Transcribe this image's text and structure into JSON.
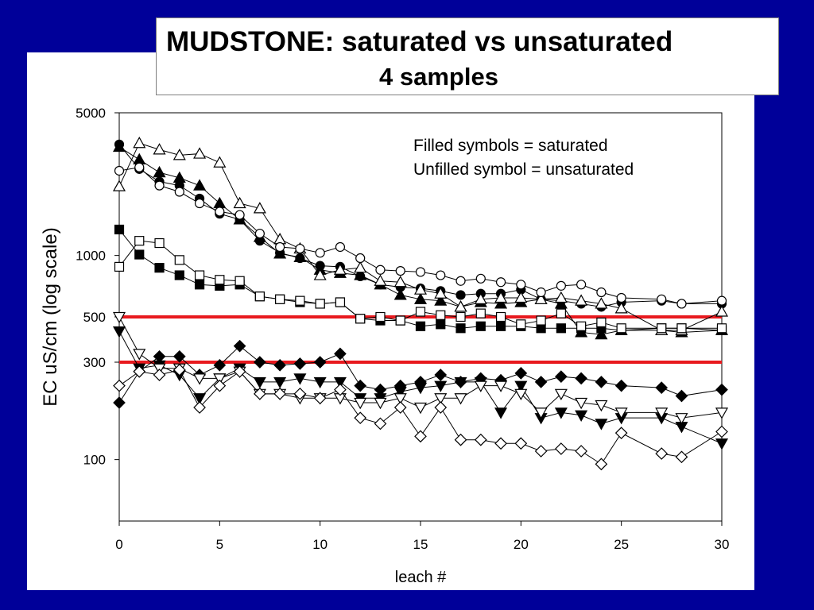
{
  "title": {
    "line1": "MUDSTONE: saturated vs unsaturated",
    "line2": "4 samples"
  },
  "colors": {
    "background": "#000099",
    "reference_line": "#e8191e"
  },
  "chart_data": {
    "type": "scatter",
    "title": "MUDSTONE: saturated vs unsaturated",
    "subtitle": "4 samples",
    "xlabel": "leach #",
    "ylabel": "EC uS/cm (log scale)",
    "xlim": [
      0,
      30
    ],
    "ylim": [
      50,
      5000
    ],
    "yscale": "log",
    "xticks": [
      0,
      5,
      10,
      15,
      20,
      25,
      30
    ],
    "yticks": [
      100,
      300,
      500,
      1000,
      5000
    ],
    "grid": false,
    "annotations": [
      "Filled symbols = saturated",
      "Unfilled symbol = unsaturated"
    ],
    "hlines": [
      500,
      300
    ],
    "series": [
      {
        "marker": "triangle-up",
        "filled": true,
        "x": [
          0,
          1,
          2,
          3,
          4,
          5,
          6,
          7,
          8,
          9,
          10,
          11,
          12,
          13,
          14,
          15,
          16,
          17,
          18,
          19,
          20,
          21,
          22,
          23,
          24,
          25,
          27,
          28,
          30
        ],
        "y": [
          3400,
          2950,
          2550,
          2400,
          2200,
          1800,
          1500,
          1230,
          1020,
          980,
          850,
          820,
          800,
          720,
          640,
          610,
          600,
          560,
          590,
          580,
          590,
          610,
          580,
          420,
          410,
          430,
          430,
          420,
          430
        ]
      },
      {
        "marker": "circle",
        "filled": true,
        "x": [
          0,
          1,
          2,
          3,
          4,
          5,
          6,
          7,
          8,
          9,
          10,
          11,
          12,
          13,
          14,
          15,
          16,
          17,
          18,
          19,
          20,
          21,
          22,
          23,
          24,
          25,
          27,
          28,
          30
        ],
        "y": [
          3500,
          2650,
          2300,
          2200,
          1900,
          1600,
          1500,
          1180,
          1030,
          970,
          890,
          880,
          790,
          720,
          700,
          690,
          670,
          640,
          650,
          650,
          680,
          610,
          600,
          580,
          560,
          590,
          600,
          580,
          580
        ]
      },
      {
        "marker": "triangle-up",
        "filled": false,
        "x": [
          0,
          1,
          2,
          3,
          4,
          5,
          6,
          7,
          8,
          9,
          10,
          11,
          12,
          13,
          14,
          15,
          16,
          17,
          18,
          19,
          20,
          21,
          22,
          23,
          24,
          25,
          27,
          28,
          30
        ],
        "y": [
          2180,
          3550,
          3300,
          3100,
          3150,
          2850,
          1800,
          1700,
          1200,
          1080,
          800,
          850,
          870,
          750,
          740,
          680,
          650,
          560,
          610,
          620,
          620,
          610,
          620,
          600,
          580,
          550,
          430,
          430,
          530
        ]
      },
      {
        "marker": "circle",
        "filled": false,
        "x": [
          0,
          1,
          2,
          3,
          4,
          5,
          6,
          7,
          8,
          9,
          10,
          11,
          12,
          13,
          14,
          15,
          16,
          17,
          18,
          19,
          20,
          21,
          22,
          23,
          24,
          25,
          27,
          28,
          30
        ],
        "y": [
          2600,
          2700,
          2200,
          2050,
          1800,
          1640,
          1580,
          1280,
          1100,
          1080,
          1030,
          1100,
          970,
          850,
          840,
          830,
          800,
          750,
          770,
          740,
          720,
          660,
          710,
          720,
          660,
          620,
          610,
          580,
          600
        ]
      },
      {
        "marker": "square",
        "filled": true,
        "x": [
          0,
          1,
          2,
          3,
          4,
          5,
          6,
          7,
          8,
          9,
          10,
          11,
          12,
          13,
          14,
          15,
          16,
          17,
          18,
          19,
          20,
          21,
          22,
          23,
          24,
          25,
          27,
          28,
          30
        ],
        "y": [
          1340,
          1010,
          870,
          800,
          720,
          710,
          720,
          630,
          610,
          590,
          580,
          590,
          490,
          480,
          480,
          450,
          460,
          440,
          450,
          450,
          450,
          440,
          440,
          440,
          440,
          430,
          440,
          440,
          430
        ]
      },
      {
        "marker": "square",
        "filled": false,
        "x": [
          0,
          1,
          2,
          3,
          4,
          5,
          6,
          7,
          8,
          9,
          10,
          11,
          12,
          13,
          14,
          15,
          16,
          17,
          18,
          19,
          20,
          21,
          22,
          23,
          24,
          25,
          27,
          28,
          30
        ],
        "y": [
          880,
          1180,
          1150,
          950,
          800,
          760,
          750,
          630,
          610,
          600,
          580,
          590,
          490,
          500,
          480,
          530,
          510,
          500,
          520,
          500,
          460,
          480,
          520,
          450,
          470,
          440,
          440,
          440,
          440
        ]
      },
      {
        "marker": "diamond",
        "filled": true,
        "x": [
          0,
          1,
          2,
          3,
          4,
          5,
          6,
          7,
          8,
          9,
          10,
          11,
          12,
          13,
          14,
          15,
          16,
          17,
          18,
          19,
          20,
          21,
          22,
          23,
          24,
          25,
          27,
          28,
          30
        ],
        "y": [
          190,
          270,
          320,
          320,
          260,
          290,
          360,
          300,
          290,
          295,
          300,
          330,
          230,
          220,
          230,
          240,
          260,
          240,
          250,
          245,
          265,
          240,
          255,
          250,
          240,
          230,
          225,
          205,
          220
        ]
      },
      {
        "marker": "triangle-down",
        "filled": true,
        "x": [
          0,
          1,
          2,
          3,
          4,
          5,
          6,
          7,
          8,
          9,
          10,
          11,
          12,
          13,
          14,
          15,
          16,
          17,
          18,
          19,
          20,
          21,
          22,
          23,
          24,
          25,
          27,
          28,
          30
        ],
        "y": [
          425,
          280,
          290,
          260,
          200,
          250,
          280,
          240,
          240,
          250,
          240,
          240,
          200,
          200,
          215,
          225,
          230,
          240,
          240,
          170,
          230,
          160,
          170,
          165,
          150,
          160,
          160,
          145,
          120
        ]
      },
      {
        "marker": "triangle-down",
        "filled": false,
        "x": [
          0,
          1,
          2,
          3,
          4,
          5,
          6,
          7,
          8,
          9,
          10,
          11,
          12,
          13,
          14,
          15,
          16,
          17,
          18,
          19,
          20,
          21,
          22,
          23,
          24,
          25,
          27,
          28,
          30
        ],
        "y": [
          500,
          330,
          280,
          280,
          250,
          250,
          270,
          210,
          210,
          200,
          200,
          200,
          190,
          190,
          200,
          180,
          200,
          200,
          230,
          230,
          210,
          170,
          210,
          190,
          185,
          170,
          170,
          160,
          170
        ]
      },
      {
        "marker": "diamond",
        "filled": false,
        "x": [
          0,
          1,
          2,
          3,
          4,
          5,
          6,
          7,
          8,
          9,
          10,
          11,
          12,
          13,
          14,
          15,
          16,
          17,
          18,
          19,
          20,
          21,
          22,
          23,
          24,
          25,
          27,
          28,
          30
        ],
        "y": [
          230,
          270,
          260,
          275,
          180,
          230,
          270,
          210,
          210,
          210,
          200,
          220,
          160,
          150,
          180,
          130,
          180,
          125,
          125,
          120,
          120,
          110,
          113,
          110,
          95,
          135,
          107,
          103,
          137
        ]
      }
    ]
  }
}
